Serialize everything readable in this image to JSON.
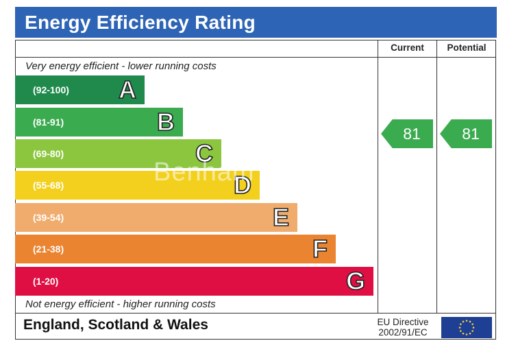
{
  "header": {
    "title": "Energy Efficiency Rating"
  },
  "columns": {
    "current": "Current",
    "potential": "Potential"
  },
  "notes": {
    "top": "Very energy efficient - lower running costs",
    "bottom": "Not energy efficient - higher running costs"
  },
  "bands": [
    {
      "range": "(92-100)",
      "letter": "A",
      "color": "#1f8a4c"
    },
    {
      "range": "(81-91)",
      "letter": "B",
      "color": "#3bab4f"
    },
    {
      "range": "(69-80)",
      "letter": "C",
      "color": "#8cc63f"
    },
    {
      "range": "(55-68)",
      "letter": "D",
      "color": "#f2d01d"
    },
    {
      "range": "(39-54)",
      "letter": "E",
      "color": "#f0ac6d"
    },
    {
      "range": "(21-38)",
      "letter": "F",
      "color": "#ea8430"
    },
    {
      "range": "(1-20)",
      "letter": "G",
      "color": "#df0f44"
    }
  ],
  "ratings": {
    "current": "81",
    "potential": "81",
    "color": "#3bab4f"
  },
  "footer": {
    "region": "England, Scotland & Wales",
    "directive_line1": "EU Directive",
    "directive_line2": "2002/91/EC"
  },
  "watermark": "Benham"
}
